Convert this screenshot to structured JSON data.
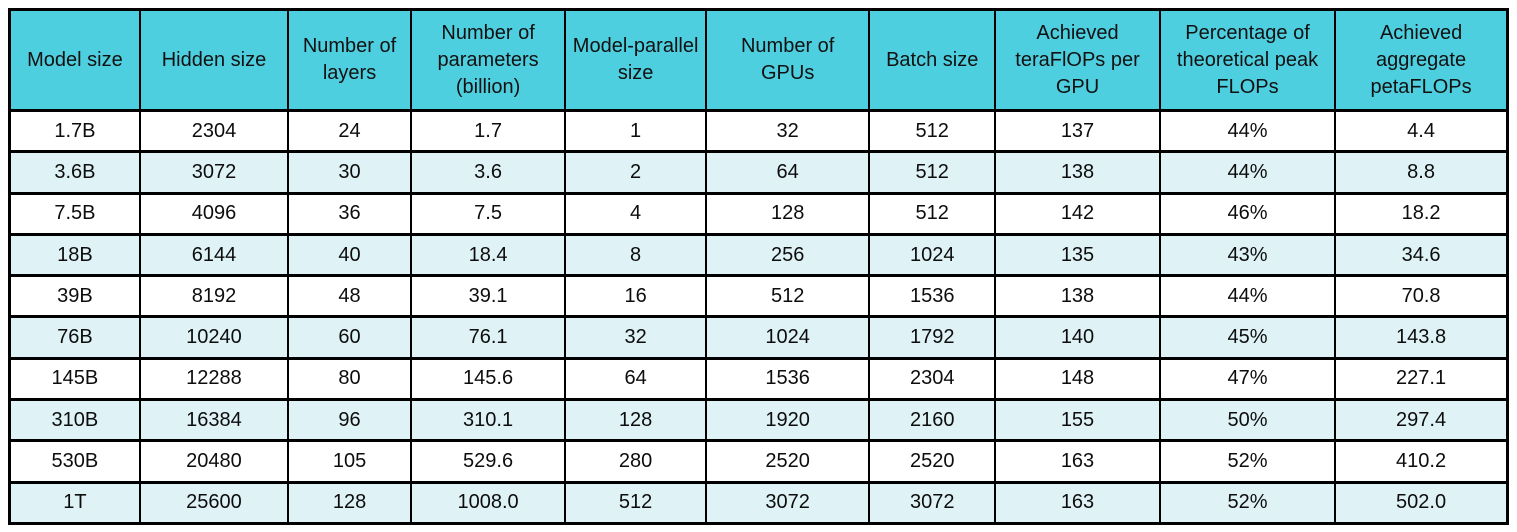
{
  "colors": {
    "header_bg": "#4ECFE0",
    "row_bg": "#FFFFFF",
    "row_alt_bg": "#DFF3F7",
    "border": "#000000",
    "text": "#111111"
  },
  "table": {
    "columns": [
      {
        "id": "model-size",
        "label": "Model size"
      },
      {
        "id": "hidden-size",
        "label": "Hidden size"
      },
      {
        "id": "number-of-layers",
        "label": "Number of layers"
      },
      {
        "id": "number-of-parameters-billion",
        "label": "Number of parameters (billion)"
      },
      {
        "id": "model-parallel-size",
        "label": "Model-parallel size"
      },
      {
        "id": "number-of-gpus",
        "label": "Number of GPUs"
      },
      {
        "id": "batch-size",
        "label": "Batch size"
      },
      {
        "id": "achieved-teraflops-per-gpu",
        "label": "Achieved teraFlOPs per GPU"
      },
      {
        "id": "percentage-of-theoretical-peak-flops",
        "label": "Percentage of theoretical peak FLOPs"
      },
      {
        "id": "achieved-aggregate-petaflops",
        "label": "Achieved aggregate petaFLOPs"
      }
    ],
    "column_widths_percent": [
      8.7,
      9.9,
      8.2,
      10.3,
      9.4,
      10.9,
      8.4,
      11.0,
      11.7,
      11.5
    ],
    "rows": [
      [
        "1.7B",
        "2304",
        "24",
        "1.7",
        "1",
        "32",
        "512",
        "137",
        "44%",
        "4.4"
      ],
      [
        "3.6B",
        "3072",
        "30",
        "3.6",
        "2",
        "64",
        "512",
        "138",
        "44%",
        "8.8"
      ],
      [
        "7.5B",
        "4096",
        "36",
        "7.5",
        "4",
        "128",
        "512",
        "142",
        "46%",
        "18.2"
      ],
      [
        "18B",
        "6144",
        "40",
        "18.4",
        "8",
        "256",
        "1024",
        "135",
        "43%",
        "34.6"
      ],
      [
        "39B",
        "8192",
        "48",
        "39.1",
        "16",
        "512",
        "1536",
        "138",
        "44%",
        "70.8"
      ],
      [
        "76B",
        "10240",
        "60",
        "76.1",
        "32",
        "1024",
        "1792",
        "140",
        "45%",
        "143.8"
      ],
      [
        "145B",
        "12288",
        "80",
        "145.6",
        "64",
        "1536",
        "2304",
        "148",
        "47%",
        "227.1"
      ],
      [
        "310B",
        "16384",
        "96",
        "310.1",
        "128",
        "1920",
        "2160",
        "155",
        "50%",
        "297.4"
      ],
      [
        "530B",
        "20480",
        "105",
        "529.6",
        "280",
        "2520",
        "2520",
        "163",
        "52%",
        "410.2"
      ],
      [
        "1T",
        "25600",
        "128",
        "1008.0",
        "512",
        "3072",
        "3072",
        "163",
        "52%",
        "502.0"
      ]
    ]
  }
}
